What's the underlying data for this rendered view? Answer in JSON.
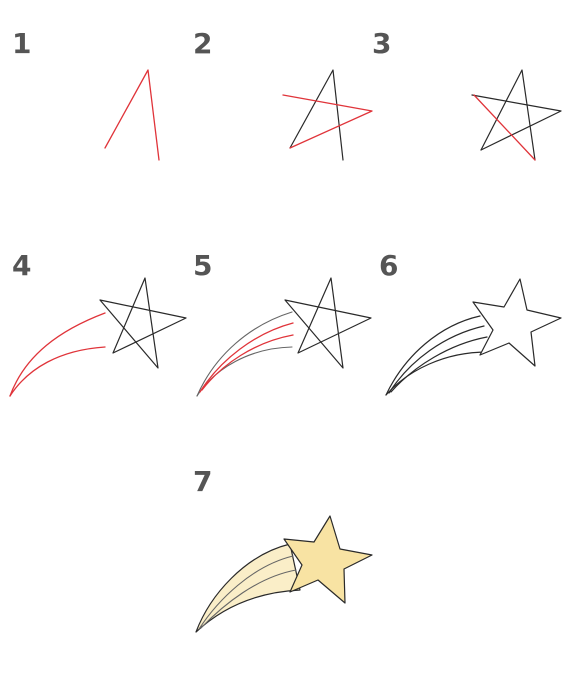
{
  "steps": [
    {
      "label": "1"
    },
    {
      "label": "2"
    },
    {
      "label": "3"
    },
    {
      "label": "4"
    },
    {
      "label": "5"
    },
    {
      "label": "6"
    },
    {
      "label": "7"
    }
  ],
  "colors": {
    "guide_line": "#e0343a",
    "outline": "#2a2a2a",
    "star_fill": "#f8e3a3",
    "tail_fill": "#faeec8",
    "step_number": "#555555"
  }
}
